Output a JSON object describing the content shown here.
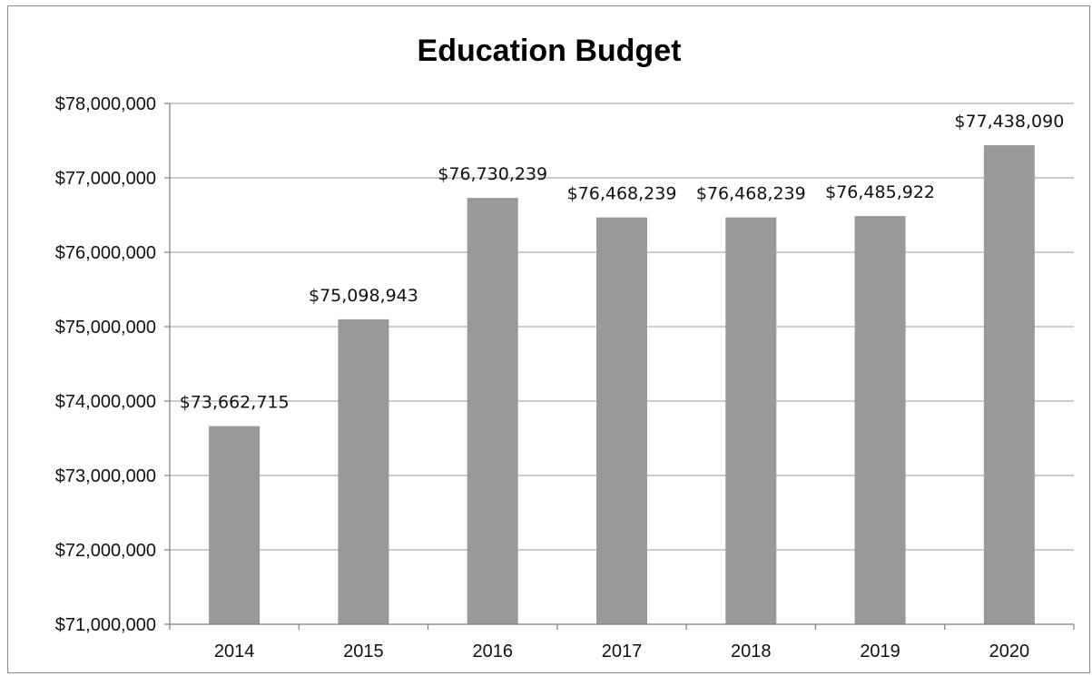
{
  "chart_data": {
    "type": "bar",
    "title": "Education Budget",
    "xlabel": "",
    "ylabel": "",
    "categories": [
      "2014",
      "2015",
      "2016",
      "2017",
      "2018",
      "2019",
      "2020"
    ],
    "values": [
      73662715,
      75098943,
      76730239,
      76468239,
      76468239,
      76485922,
      77438090
    ],
    "data_labels": [
      "$73,662,715",
      "$75,098,943",
      "$76,730,239",
      "$76,468,239",
      "$76,468,239",
      "$76,485,922",
      "$77,438,090"
    ],
    "ylim": [
      71000000,
      78000000
    ],
    "y_ticks": [
      71000000,
      72000000,
      73000000,
      74000000,
      75000000,
      76000000,
      77000000,
      78000000
    ],
    "y_tick_labels": [
      "$71,000,000",
      "$72,000,000",
      "$73,000,000",
      "$74,000,000",
      "$75,000,000",
      "$76,000,000",
      "$77,000,000",
      "$78,000,000"
    ],
    "grid": true,
    "legend": "none",
    "bar_color": "#999999"
  }
}
